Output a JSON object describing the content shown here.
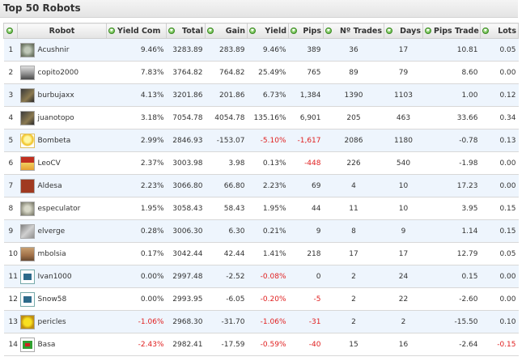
{
  "title": "Top 50 Robots",
  "columns": {
    "robot": "Robot",
    "yield_com": "Yield Com",
    "total": "Total",
    "gain": "Gain",
    "yield": "Yield",
    "pips": "Pips",
    "trades": "Nº Trades",
    "days": "Days",
    "pips_trade": "Pips Trade",
    "lots": "Lots"
  },
  "icons": {
    "sort": "sort-arrow-icon"
  },
  "colors": {
    "negative": "#e02020",
    "row_alt": "#eef5fd",
    "sort_icon": "#4caa2e"
  },
  "rows": [
    {
      "rank": "1",
      "name": "Acushnir",
      "avatar": "gear",
      "yield_com": "9.46%",
      "total": "3283.89",
      "gain": "283.89",
      "yield": "9.46%",
      "pips": "389",
      "trades": "36",
      "days": "17",
      "pips_trade": "10.81",
      "lots": "0.05"
    },
    {
      "rank": "2",
      "name": "copito2000",
      "avatar": "man",
      "yield_com": "7.83%",
      "total": "3764.82",
      "gain": "764.82",
      "yield": "25.49%",
      "pips": "765",
      "trades": "89",
      "days": "79",
      "pips_trade": "8.60",
      "lots": "0.00"
    },
    {
      "rank": "3",
      "name": "burbujaxx",
      "avatar": "dark",
      "yield_com": "4.13%",
      "total": "3201.86",
      "gain": "201.86",
      "yield": "6.73%",
      "pips": "1,384",
      "trades": "1390",
      "days": "1103",
      "pips_trade": "1.00",
      "lots": "0.12"
    },
    {
      "rank": "4",
      "name": "juanotopo",
      "avatar": "dark",
      "yield_com": "3.18%",
      "total": "7054.78",
      "gain": "4054.78",
      "yield": "135.16%",
      "pips": "6,901",
      "trades": "205",
      "days": "463",
      "pips_trade": "33.66",
      "lots": "0.34"
    },
    {
      "rank": "5",
      "name": "Bombeta",
      "avatar": "bulb",
      "yield_com": "2.99%",
      "total": "2846.93",
      "gain": "-153.07",
      "yield": "-5.10%",
      "pips": "-1,617",
      "trades": "2086",
      "days": "1180",
      "pips_trade": "-0.78",
      "lots": "0.13"
    },
    {
      "rank": "6",
      "name": "LeoCV",
      "avatar": "house",
      "yield_com": "2.37%",
      "total": "3003.98",
      "gain": "3.98",
      "yield": "0.13%",
      "pips": "-448",
      "trades": "226",
      "days": "540",
      "pips_trade": "-1.98",
      "lots": "0.00"
    },
    {
      "rank": "7",
      "name": "Aldesa",
      "avatar": "brick",
      "yield_com": "2.23%",
      "total": "3066.80",
      "gain": "66.80",
      "yield": "2.23%",
      "pips": "69",
      "trades": "4",
      "days": "10",
      "pips_trade": "17.23",
      "lots": "0.00"
    },
    {
      "rank": "8",
      "name": "especulator",
      "avatar": "coin",
      "yield_com": "1.95%",
      "total": "3058.43",
      "gain": "58.43",
      "yield": "1.95%",
      "pips": "44",
      "trades": "11",
      "days": "10",
      "pips_trade": "3.95",
      "lots": "0.15"
    },
    {
      "rank": "9",
      "name": "elverge",
      "avatar": "glitch",
      "yield_com": "0.28%",
      "total": "3006.30",
      "gain": "6.30",
      "yield": "0.21%",
      "pips": "9",
      "trades": "8",
      "days": "9",
      "pips_trade": "1.14",
      "lots": "0.15"
    },
    {
      "rank": "10",
      "name": "mbolsia",
      "avatar": "face",
      "yield_com": "0.17%",
      "total": "3042.44",
      "gain": "42.44",
      "yield": "1.41%",
      "pips": "218",
      "trades": "17",
      "days": "17",
      "pips_trade": "12.79",
      "lots": "0.05"
    },
    {
      "rank": "11",
      "name": "Ivan1000",
      "avatar": "bluebot",
      "yield_com": "0.00%",
      "total": "2997.48",
      "gain": "-2.52",
      "yield": "-0.08%",
      "pips": "0",
      "trades": "2",
      "days": "24",
      "pips_trade": "0.15",
      "lots": "0.00"
    },
    {
      "rank": "12",
      "name": "Snow58",
      "avatar": "bluebot",
      "yield_com": "0.00%",
      "total": "2993.95",
      "gain": "-6.05",
      "yield": "-0.20%",
      "pips": "-5",
      "trades": "2",
      "days": "22",
      "pips_trade": "-2.60",
      "lots": "0.00"
    },
    {
      "rank": "13",
      "name": "pericles",
      "avatar": "yellow",
      "yield_com": "-1.06%",
      "total": "2968.30",
      "gain": "-31.70",
      "yield": "-1.06%",
      "pips": "-31",
      "trades": "2",
      "days": "2",
      "pips_trade": "-15.50",
      "lots": "0.10"
    },
    {
      "rank": "14",
      "name": "Basa",
      "avatar": "redbot",
      "yield_com": "-2.43%",
      "total": "2982.41",
      "gain": "-17.59",
      "yield": "-0.59%",
      "pips": "-40",
      "trades": "15",
      "days": "16",
      "pips_trade": "-2.64",
      "lots": "-0.15"
    }
  ]
}
